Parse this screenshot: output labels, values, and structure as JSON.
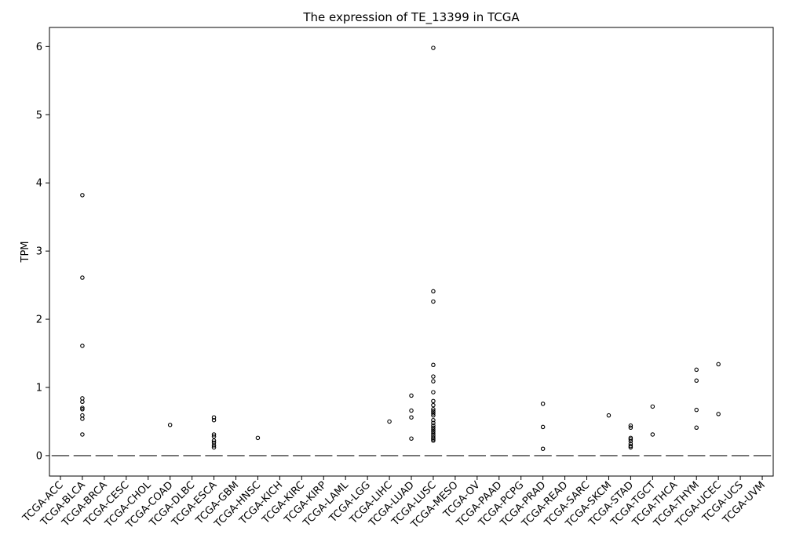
{
  "chart_data": {
    "type": "box",
    "title": "The expression of TE_13399 in TCGA",
    "xlabel": "",
    "ylabel": "TPM",
    "ylim": [
      -0.3,
      6.28
    ],
    "yticks": [
      0,
      1,
      2,
      3,
      4,
      5,
      6
    ],
    "grid": false,
    "categories": [
      "TCGA-ACC",
      "TCGA-BLCA",
      "TCGA-BRCA",
      "TCGA-CESC",
      "TCGA-CHOL",
      "TCGA-COAD",
      "TCGA-DLBC",
      "TCGA-ESCA",
      "TCGA-GBM",
      "TCGA-HNSC",
      "TCGA-KICH",
      "TCGA-KIRC",
      "TCGA-KIRP",
      "TCGA-LAML",
      "TCGA-LGG",
      "TCGA-LIHC",
      "TCGA-LUAD",
      "TCGA-LUSC",
      "TCGA-MESO",
      "TCGA-OV",
      "TCGA-PAAD",
      "TCGA-PCPG",
      "TCGA-PRAD",
      "TCGA-READ",
      "TCGA-SARC",
      "TCGA-SKCM",
      "TCGA-STAD",
      "TCGA-TGCT",
      "TCGA-THCA",
      "TCGA-THYM",
      "TCGA-UCEC",
      "TCGA-UCS",
      "TCGA-UVM"
    ],
    "median": [
      0,
      0,
      0,
      0,
      0,
      0,
      0,
      0,
      0,
      0,
      0,
      0,
      0,
      0,
      0,
      0,
      0,
      0,
      0,
      0,
      0,
      0,
      0,
      0,
      0,
      0,
      0,
      0,
      0,
      0,
      0,
      0,
      0
    ],
    "outliers": {
      "TCGA-BLCA": [
        3.82,
        2.61,
        1.61,
        0.84,
        0.79,
        0.7,
        0.68,
        0.59,
        0.54,
        0.31
      ],
      "TCGA-COAD": [
        0.45
      ],
      "TCGA-ESCA": [
        0.56,
        0.52,
        0.31,
        0.28,
        0.22,
        0.19,
        0.15,
        0.12
      ],
      "TCGA-HNSC": [
        0.26
      ],
      "TCGA-LIHC": [
        0.5
      ],
      "TCGA-LUAD": [
        0.88,
        0.66,
        0.56,
        0.25
      ],
      "TCGA-LUSC": [
        5.98,
        2.41,
        2.26,
        1.33,
        1.16,
        1.09,
        0.93,
        0.8,
        0.74,
        0.68,
        0.65,
        0.62,
        0.59,
        0.52,
        0.48,
        0.44,
        0.41,
        0.38,
        0.35,
        0.32,
        0.29,
        0.26,
        0.24,
        0.22
      ],
      "TCGA-PRAD": [
        0.76,
        0.42,
        0.1
      ],
      "TCGA-SKCM": [
        0.59
      ],
      "TCGA-STAD": [
        0.44,
        0.41,
        0.26,
        0.24,
        0.21,
        0.17,
        0.14,
        0.12
      ],
      "TCGA-TGCT": [
        0.72,
        0.31
      ],
      "TCGA-THYM": [
        1.26,
        1.1,
        0.67,
        0.41
      ],
      "TCGA-UCEC": [
        1.34,
        0.61
      ]
    },
    "box_color": "#5a5a5a",
    "outlier_color": "#000000"
  }
}
